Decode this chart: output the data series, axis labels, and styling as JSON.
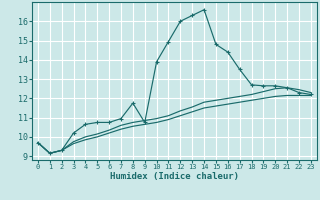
{
  "xlabel": "Humidex (Indice chaleur)",
  "xlim": [
    -0.5,
    23.5
  ],
  "ylim": [
    8.8,
    17.0
  ],
  "yticks": [
    9,
    10,
    11,
    12,
    13,
    14,
    15,
    16
  ],
  "xticks": [
    0,
    1,
    2,
    3,
    4,
    5,
    6,
    7,
    8,
    9,
    10,
    11,
    12,
    13,
    14,
    15,
    16,
    17,
    18,
    19,
    20,
    21,
    22,
    23
  ],
  "bg_color": "#cce8e8",
  "grid_color": "#ffffff",
  "line_color": "#1a6b6b",
  "line1_x": [
    0,
    1,
    2,
    3,
    4,
    5,
    6,
    7,
    8,
    9,
    10,
    11,
    12,
    13,
    14,
    15,
    16,
    17,
    18,
    19,
    20,
    21,
    22,
    23
  ],
  "line1_y": [
    9.7,
    9.15,
    9.3,
    10.2,
    10.65,
    10.75,
    10.75,
    10.95,
    11.75,
    10.75,
    13.9,
    14.95,
    16.0,
    16.3,
    16.6,
    14.8,
    14.4,
    13.5,
    12.7,
    12.65,
    12.65,
    12.55,
    12.3,
    12.2
  ],
  "line2_x": [
    0,
    1,
    2,
    3,
    4,
    5,
    6,
    7,
    8,
    9,
    10,
    11,
    12,
    13,
    14,
    15,
    16,
    17,
    18,
    19,
    20,
    21,
    22,
    23
  ],
  "line2_y": [
    9.7,
    9.15,
    9.3,
    9.75,
    10.0,
    10.15,
    10.35,
    10.6,
    10.75,
    10.85,
    10.95,
    11.1,
    11.35,
    11.55,
    11.8,
    11.9,
    12.0,
    12.1,
    12.2,
    12.35,
    12.5,
    12.55,
    12.45,
    12.3
  ],
  "line3_x": [
    0,
    1,
    2,
    3,
    4,
    5,
    6,
    7,
    8,
    9,
    10,
    11,
    12,
    13,
    14,
    15,
    16,
    17,
    18,
    19,
    20,
    21,
    22,
    23
  ],
  "line3_y": [
    9.7,
    9.15,
    9.3,
    9.65,
    9.85,
    10.0,
    10.2,
    10.4,
    10.55,
    10.65,
    10.75,
    10.9,
    11.1,
    11.3,
    11.5,
    11.6,
    11.7,
    11.8,
    11.9,
    12.0,
    12.1,
    12.15,
    12.15,
    12.15
  ]
}
